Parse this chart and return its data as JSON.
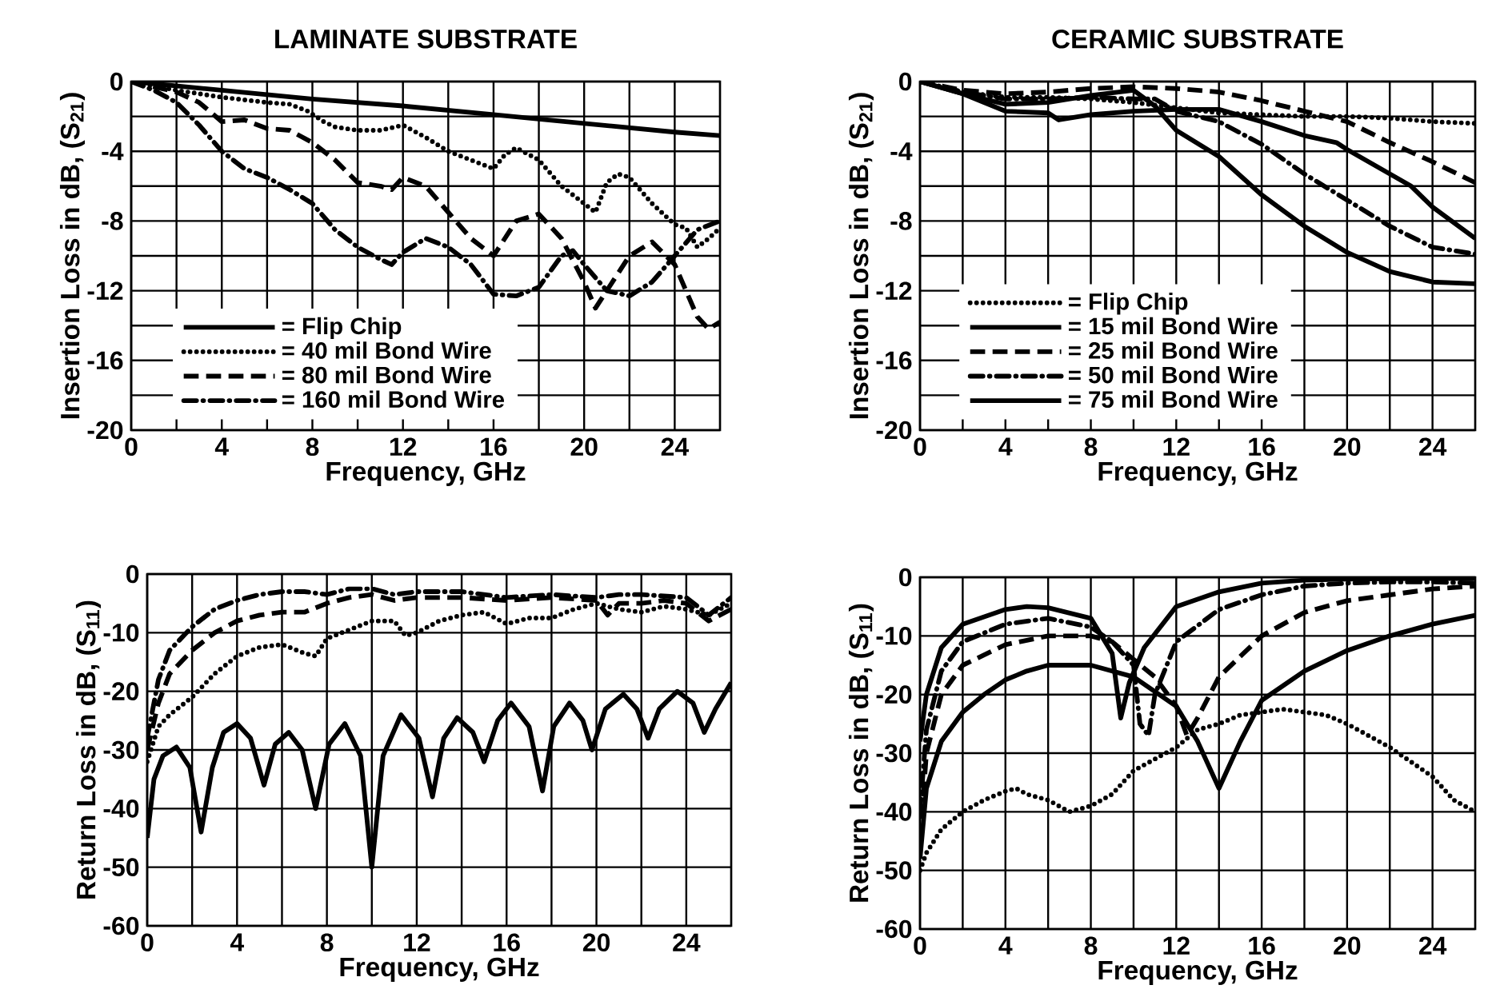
{
  "chart_data": [
    {
      "type": "line",
      "title": "LAMINATE  SUBSTRATE",
      "xlabel": "Frequency,  GHz",
      "ylabel": "Insertion  Loss  in  dB,  (S$_{21}$)",
      "xlim": [
        0,
        26
      ],
      "ylim": [
        -20,
        0
      ],
      "xticks": [
        0,
        {
          "value": 2,
          "label": null
        },
        4,
        {
          "value": 6,
          "label": null
        },
        8,
        {
          "value": 10,
          "label": null
        },
        12,
        {
          "value": 14,
          "label": null
        },
        16,
        {
          "value": 18,
          "label": null
        },
        20,
        {
          "value": 22,
          "label": null
        },
        24
      ],
      "yticks": [
        -20,
        {
          "value": -18,
          "label": null
        },
        -16,
        {
          "value": -14,
          "label": null
        },
        -12,
        {
          "value": -10,
          "label": null
        },
        -8,
        {
          "value": -6,
          "label": null
        },
        -4,
        {
          "value": -2,
          "label": null
        },
        0
      ],
      "grid": true,
      "legend": "bottom left",
      "series": [
        {
          "name": "= Flip  Chip",
          "color": "#000000",
          "line_style": "solid",
          "x": [
            0,
            4,
            8,
            12,
            16,
            20,
            24,
            26
          ],
          "values": [
            0,
            -0.5,
            -1.0,
            -1.4,
            -1.9,
            -2.4,
            -2.9,
            -3.1
          ]
        },
        {
          "name": "= 40 mil  Bond  Wire",
          "color": "#000000",
          "line_style": "dotted",
          "x": [
            0,
            2,
            4,
            6,
            7,
            7.8,
            8.5,
            9,
            10,
            11,
            12,
            13,
            14,
            15,
            16,
            16.5,
            17,
            18,
            19,
            20,
            20.5,
            21,
            21.5,
            22,
            23,
            24,
            24.5,
            25,
            25.5,
            26
          ],
          "values": [
            0,
            -0.5,
            -0.9,
            -1.2,
            -1.3,
            -1.7,
            -2.3,
            -2.6,
            -2.8,
            -2.8,
            -2.5,
            -3.2,
            -4.0,
            -4.5,
            -5.0,
            -4.2,
            -3.8,
            -4.5,
            -6.0,
            -7.0,
            -7.5,
            -5.8,
            -5.3,
            -5.5,
            -7.0,
            -8.2,
            -8.4,
            -9.5,
            -9.0,
            -8.4
          ]
        },
        {
          "name": "= 80 mil  Bond  Wire",
          "color": "#000000",
          "line_style": "dashed",
          "x": [
            0,
            2,
            3,
            4,
            5,
            6,
            7,
            8,
            9,
            10,
            11,
            11.5,
            12,
            13,
            14,
            15,
            16,
            17,
            18,
            19,
            20,
            20.5,
            21,
            22,
            23,
            24,
            25,
            25.5,
            26
          ],
          "values": [
            0,
            -0.6,
            -1.2,
            -2.3,
            -2.2,
            -2.7,
            -2.8,
            -3.5,
            -4.5,
            -5.8,
            -6.0,
            -6.2,
            -5.5,
            -6.0,
            -7.5,
            -9.0,
            -10,
            -8.0,
            -7.6,
            -9.0,
            -11.5,
            -13.0,
            -12,
            -10,
            -9.2,
            -10.5,
            -13.5,
            -14.2,
            -13.8
          ]
        },
        {
          "name": "= 160 mil  Bond  Wire",
          "color": "#000000",
          "line_style": "dashdot",
          "x": [
            0,
            1,
            2,
            3,
            4,
            5,
            6,
            7,
            8,
            9,
            10,
            11,
            11.5,
            12,
            13,
            14,
            15,
            16,
            17,
            18,
            19,
            19.5,
            20,
            21,
            22,
            23,
            24,
            25,
            26
          ],
          "values": [
            0,
            -0.5,
            -1.2,
            -2.5,
            -4.0,
            -5.0,
            -5.5,
            -6.2,
            -7.0,
            -8.5,
            -9.5,
            -10.2,
            -10.5,
            -9.8,
            -9.0,
            -9.5,
            -10.5,
            -12.2,
            -12.3,
            -11.8,
            -10.0,
            -9.7,
            -10.5,
            -12,
            -12.3,
            -11.5,
            -10,
            -8.5,
            -8.0
          ]
        }
      ]
    },
    {
      "type": "line",
      "title": "CERAMIC  SUBSTRATE",
      "xlabel": "Frequency,  GHz",
      "ylabel": "Insertion  Loss  in  dB,  (S$_{21}$)",
      "xlim": [
        0,
        26
      ],
      "ylim": [
        -20,
        0
      ],
      "xticks": [
        0,
        {
          "value": 2,
          "label": null
        },
        4,
        {
          "value": 6,
          "label": null
        },
        8,
        {
          "value": 10,
          "label": null
        },
        12,
        {
          "value": 14,
          "label": null
        },
        16,
        {
          "value": 18,
          "label": null
        },
        20,
        {
          "value": 22,
          "label": null
        },
        24
      ],
      "yticks": [
        -20,
        {
          "value": -18,
          "label": null
        },
        -16,
        {
          "value": -14,
          "label": null
        },
        -12,
        {
          "value": -10,
          "label": null
        },
        -8,
        {
          "value": -6,
          "label": null
        },
        -4,
        {
          "value": -2,
          "label": null
        },
        0
      ],
      "grid": true,
      "legend": "bottom left",
      "series": [
        {
          "name": "= Flip  Chip",
          "color": "#000000",
          "line_style": "dotted",
          "x": [
            0,
            2,
            4,
            6,
            8,
            10,
            12,
            14,
            16,
            18,
            20,
            22,
            24,
            26
          ],
          "values": [
            0,
            -0.6,
            -0.9,
            -0.9,
            -1.0,
            -1.2,
            -1.5,
            -1.8,
            -1.9,
            -2.0,
            -2.0,
            -2.1,
            -2.3,
            -2.4
          ]
        },
        {
          "name": "= 15 mil  Bond  Wire",
          "color": "#000000",
          "line_style": "solid",
          "x": [
            0,
            2,
            4,
            6,
            6.5,
            8,
            10,
            12,
            14,
            16,
            18,
            19.5,
            20,
            22,
            23,
            24,
            26
          ],
          "values": [
            0,
            -0.7,
            -1.7,
            -1.8,
            -2.2,
            -1.9,
            -1.7,
            -1.6,
            -1.6,
            -2.3,
            -3.1,
            -3.5,
            -3.9,
            -5.3,
            -6.0,
            -7.2,
            -9.0
          ]
        },
        {
          "name": "= 25 mil  Bond  Wire",
          "color": "#000000",
          "line_style": "dashed",
          "x": [
            0,
            2,
            4,
            6,
            8,
            10,
            12,
            14,
            16,
            18,
            20,
            22,
            24,
            26
          ],
          "values": [
            0,
            -0.5,
            -0.7,
            -0.6,
            -0.4,
            -0.3,
            -0.4,
            -0.6,
            -1.1,
            -1.7,
            -2.3,
            -3.5,
            -4.6,
            -5.8
          ]
        },
        {
          "name": "= 50 mil  Bond  Wire",
          "color": "#000000",
          "line_style": "dashdot",
          "x": [
            0,
            2,
            4,
            6,
            8,
            10,
            11,
            12,
            14,
            16,
            18,
            20,
            22,
            24,
            26
          ],
          "values": [
            0,
            -0.6,
            -1.0,
            -1.0,
            -0.9,
            -1.0,
            -1.0,
            -1.7,
            -2.3,
            -3.6,
            -5.3,
            -6.8,
            -8.3,
            -9.5,
            -9.9
          ]
        },
        {
          "name": "= 75 mil  Bond  Wire",
          "color": "#000000",
          "line_style": "solid",
          "x": [
            0,
            2,
            4,
            6,
            8,
            10,
            11,
            12,
            14,
            16,
            18,
            20,
            22,
            24,
            26
          ],
          "values": [
            0,
            -0.7,
            -1.3,
            -1.2,
            -0.8,
            -0.5,
            -1.4,
            -2.8,
            -4.3,
            -6.5,
            -8.3,
            -9.8,
            -10.9,
            -11.5,
            -11.6
          ]
        }
      ]
    },
    {
      "type": "line",
      "xlabel": "Frequency,  GHz",
      "ylabel": "Return  Loss  in  dB,  (S$_{11}$)",
      "xlim": [
        0,
        26
      ],
      "ylim": [
        -60,
        0
      ],
      "xticks": [
        0,
        {
          "value": 2,
          "label": null
        },
        4,
        {
          "value": 6,
          "label": null
        },
        8,
        {
          "value": 10,
          "label": null
        },
        12,
        {
          "value": 14,
          "label": null
        },
        16,
        {
          "value": 18,
          "label": null
        },
        20,
        {
          "value": 22,
          "label": null
        },
        24
      ],
      "yticks": [
        -60,
        -50,
        -40,
        -30,
        -20,
        -10,
        0
      ],
      "grid": true,
      "series": [
        {
          "color": "#000000",
          "line_style": "solid",
          "x": [
            0,
            0.3,
            0.7,
            1.3,
            1.9,
            2.4,
            2.9,
            3.4,
            4,
            4.6,
            5.2,
            5.7,
            6.3,
            6.9,
            7.5,
            8.1,
            8.8,
            9.5,
            10,
            10.5,
            11.3,
            12.1,
            12.7,
            13.2,
            13.8,
            14.5,
            15,
            15.6,
            16.2,
            17,
            17.6,
            18.1,
            18.8,
            19.4,
            19.8,
            20.4,
            21.2,
            21.8,
            22.3,
            22.8,
            23.6,
            24.3,
            24.8,
            25.3,
            26
          ],
          "values": [
            -45,
            -35,
            -31,
            -29.5,
            -33,
            -44,
            -33,
            -27,
            -25.5,
            -28,
            -36,
            -29,
            -27,
            -30,
            -40,
            -29,
            -25.5,
            -31,
            -50,
            -31,
            -24,
            -28,
            -38,
            -28,
            -24.5,
            -27,
            -32,
            -25,
            -22,
            -26,
            -37,
            -26,
            -22,
            -25,
            -30,
            -23,
            -20.5,
            -23,
            -28,
            -23,
            -20,
            -22,
            -27,
            -23,
            -18.5
          ]
        },
        {
          "color": "#000000",
          "line_style": "dotted",
          "x": [
            0,
            0.5,
            1,
            2,
            3,
            4,
            5,
            6,
            7,
            7.5,
            8,
            9,
            10,
            11,
            11.5,
            12,
            13,
            14,
            15,
            16,
            17,
            18,
            19,
            20,
            21,
            22,
            23,
            24,
            25,
            26
          ],
          "values": [
            -32,
            -26,
            -24,
            -21,
            -17,
            -14,
            -12.5,
            -12,
            -13.5,
            -14,
            -11,
            -9.5,
            -8,
            -8,
            -10.5,
            -10,
            -8,
            -7,
            -6.5,
            -8.5,
            -7.5,
            -7.5,
            -6,
            -5,
            -6,
            -6.5,
            -5.5,
            -6,
            -7,
            -5
          ]
        },
        {
          "color": "#000000",
          "line_style": "dashed",
          "x": [
            0,
            0.5,
            1,
            2,
            3,
            4,
            5,
            6,
            7,
            8,
            9,
            10,
            11,
            12,
            14,
            16,
            18,
            20,
            20.5,
            21,
            22,
            23,
            24,
            25,
            26
          ],
          "values": [
            -30,
            -22,
            -17,
            -13,
            -10,
            -8,
            -7,
            -6.5,
            -6.5,
            -5,
            -4,
            -3.5,
            -4.5,
            -4,
            -4,
            -4.5,
            -4,
            -4.5,
            -7,
            -5,
            -5,
            -4.5,
            -5,
            -8,
            -6
          ]
        },
        {
          "color": "#000000",
          "line_style": "dashdot",
          "x": [
            0,
            0.5,
            1,
            2,
            3,
            4,
            5,
            6,
            7,
            8,
            9,
            10,
            11,
            12,
            14,
            16,
            18,
            20,
            21,
            22,
            24,
            25,
            26
          ],
          "values": [
            -28,
            -18,
            -13,
            -9,
            -6,
            -4.5,
            -3.5,
            -3,
            -3,
            -3.5,
            -2.5,
            -2.5,
            -3.5,
            -3,
            -3,
            -4,
            -3.5,
            -4,
            -3.5,
            -3.5,
            -4,
            -7,
            -4
          ]
        }
      ]
    },
    {
      "type": "line",
      "xlabel": "Frequency,  GHz",
      "ylabel": "Return  Loss  in  dB,  (S$_{11}$)",
      "xlim": [
        0,
        26
      ],
      "ylim": [
        -60,
        0
      ],
      "xticks": [
        0,
        {
          "value": 2,
          "label": null
        },
        4,
        {
          "value": 6,
          "label": null
        },
        8,
        {
          "value": 10,
          "label": null
        },
        12,
        {
          "value": 14,
          "label": null
        },
        16,
        {
          "value": 18,
          "label": null
        },
        20,
        {
          "value": 22,
          "label": null
        },
        24
      ],
      "yticks": [
        -60,
        -50,
        -40,
        -30,
        -20,
        -10,
        0
      ],
      "grid": true,
      "series": [
        {
          "color": "#000000",
          "line_style": "dotted",
          "x": [
            0,
            0.3,
            1,
            2,
            3,
            4,
            4.5,
            5,
            6,
            7,
            8,
            9,
            10,
            11,
            12,
            13,
            14,
            15,
            16,
            17,
            18,
            19,
            20,
            22,
            24,
            25,
            26
          ],
          "values": [
            -50,
            -47,
            -43,
            -40,
            -38,
            -36.5,
            -36,
            -37,
            -38,
            -40,
            -39,
            -37,
            -33,
            -31,
            -29,
            -26,
            -25,
            -23.5,
            -23,
            -22.5,
            -23,
            -23.5,
            -25,
            -29,
            -34,
            -38,
            -40
          ]
        },
        {
          "color": "#000000",
          "line_style": "solid",
          "x": [
            0,
            0.3,
            1,
            2,
            3,
            4,
            5,
            6,
            8,
            10,
            12,
            13,
            14,
            15,
            16,
            18,
            20,
            22,
            24,
            26
          ],
          "values": [
            -48,
            -36,
            -28,
            -23,
            -20,
            -17.5,
            -16,
            -15,
            -15,
            -17,
            -22,
            -28,
            -36,
            -28,
            -21,
            -16,
            -12.5,
            -10,
            -8,
            -6.5
          ]
        },
        {
          "color": "#000000",
          "line_style": "dashed",
          "x": [
            0,
            0.3,
            1,
            2,
            4,
            6,
            8,
            9,
            10,
            11,
            12,
            12.5,
            13,
            14,
            16,
            18,
            20,
            22,
            24,
            26
          ],
          "values": [
            -45,
            -30,
            -20,
            -15,
            -11.5,
            -10,
            -10,
            -11,
            -14,
            -17,
            -22,
            -27,
            -24,
            -17,
            -10,
            -6,
            -4,
            -3,
            -2,
            -1.5
          ]
        },
        {
          "color": "#000000",
          "line_style": "dashdot",
          "x": [
            0,
            0.3,
            1,
            2,
            4,
            6,
            8,
            9,
            10,
            10.3,
            10.7,
            11,
            12,
            14,
            16,
            18,
            20,
            22,
            24,
            26
          ],
          "values": [
            -40,
            -26,
            -16,
            -11,
            -8,
            -7,
            -8.5,
            -11,
            -15,
            -25,
            -27,
            -20,
            -11,
            -5.5,
            -3,
            -1.5,
            -1,
            -0.8,
            -0.8,
            -1
          ]
        },
        {
          "color": "#000000",
          "line_style": "solid",
          "x": [
            0,
            0.3,
            1,
            2,
            4,
            5,
            6,
            8,
            9,
            9.4,
            9.8,
            10.5,
            12,
            14,
            16,
            18,
            20,
            24,
            26
          ],
          "values": [
            -28,
            -20,
            -12,
            -8,
            -5.5,
            -5,
            -5.2,
            -7,
            -13,
            -24,
            -18,
            -12,
            -5,
            -2.5,
            -1,
            -0.5,
            -0.3,
            -0.2,
            -0.2
          ]
        }
      ]
    }
  ]
}
